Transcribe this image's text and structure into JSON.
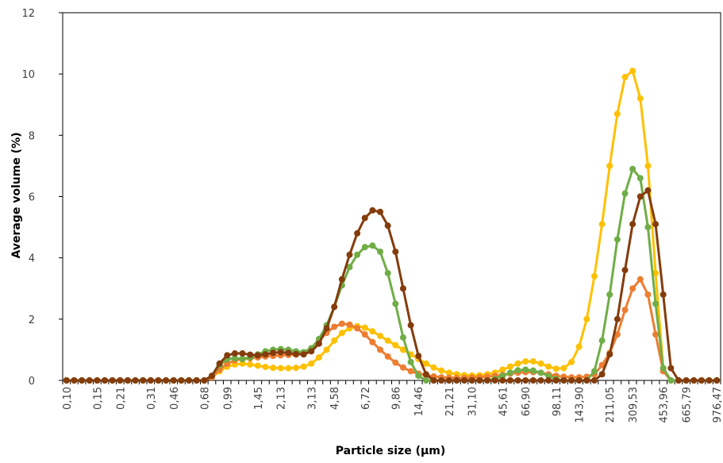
{
  "chart_data": {
    "type": "line",
    "title": "",
    "xlabel": "Particle size (µm)",
    "ylabel": "Average volume (%)",
    "ylim": [
      0,
      12
    ],
    "yticks": [
      "0",
      "2",
      "4",
      "6",
      "8",
      "10",
      "12"
    ],
    "grid": false,
    "legend": "none",
    "x_tick_labels": [
      "0,10",
      "0,15",
      "0,21",
      "0,31",
      "0,46",
      "0,68",
      "0,99",
      "1,45",
      "2,13",
      "3,13",
      "4,58",
      "6,72",
      "9,86",
      "14,46",
      "21,21",
      "31,10",
      "45,61",
      "66,90",
      "98,11",
      "143,90",
      "211,05",
      "309,53",
      "453,96",
      "665,79",
      "976,47"
    ],
    "n_points": 86,
    "series": [
      {
        "color": "#ffc000",
        "values": [
          0,
          0,
          0,
          0,
          0,
          0,
          0,
          0,
          0,
          0,
          0,
          0,
          0,
          0,
          0,
          0,
          0,
          0,
          0,
          0.1,
          0.3,
          0.45,
          0.52,
          0.55,
          0.52,
          0.48,
          0.44,
          0.41,
          0.4,
          0.4,
          0.41,
          0.45,
          0.55,
          0.75,
          1.0,
          1.3,
          1.55,
          1.7,
          1.77,
          1.72,
          1.6,
          1.45,
          1.3,
          1.15,
          1.0,
          0.85,
          0.7,
          0.55,
          0.42,
          0.32,
          0.25,
          0.2,
          0.17,
          0.16,
          0.17,
          0.2,
          0.25,
          0.35,
          0.45,
          0.55,
          0.62,
          0.62,
          0.55,
          0.45,
          0.38,
          0.4,
          0.6,
          1.1,
          2.0,
          3.4,
          5.1,
          7.0,
          8.7,
          9.9,
          10.1,
          9.2,
          7.0,
          3.5,
          0.4,
          0,
          0,
          0,
          0,
          0,
          0,
          0
        ]
      },
      {
        "color": "#ed7d31",
        "values": [
          0,
          0,
          0,
          0,
          0,
          0,
          0,
          0,
          0,
          0,
          0,
          0,
          0,
          0,
          0,
          0,
          0,
          0,
          0,
          0.1,
          0.35,
          0.55,
          0.65,
          0.7,
          0.72,
          0.75,
          0.78,
          0.8,
          0.82,
          0.83,
          0.84,
          0.9,
          1.05,
          1.3,
          1.55,
          1.75,
          1.85,
          1.82,
          1.7,
          1.5,
          1.25,
          1.0,
          0.78,
          0.58,
          0.42,
          0.3,
          0.22,
          0.17,
          0.13,
          0.1,
          0.09,
          0.08,
          0.08,
          0.09,
          0.1,
          0.12,
          0.15,
          0.18,
          0.22,
          0.25,
          0.27,
          0.27,
          0.25,
          0.2,
          0.15,
          0.12,
          0.1,
          0.1,
          0.12,
          0.2,
          0.5,
          0.9,
          1.5,
          2.3,
          3.0,
          3.3,
          2.8,
          1.5,
          0.3,
          0,
          0,
          0,
          0,
          0,
          0,
          0
        ]
      },
      {
        "color": "#70ad47",
        "values": [
          0,
          0,
          0,
          0,
          0,
          0,
          0,
          0,
          0,
          0,
          0,
          0,
          0,
          0,
          0,
          0,
          0,
          0,
          0,
          0.15,
          0.5,
          0.7,
          0.72,
          0.7,
          0.75,
          0.85,
          0.95,
          1.0,
          1.02,
          1.0,
          0.95,
          0.92,
          1.05,
          1.35,
          1.8,
          2.4,
          3.1,
          3.7,
          4.1,
          4.35,
          4.4,
          4.2,
          3.5,
          2.5,
          1.4,
          0.6,
          0.15,
          0,
          0,
          0,
          0,
          0,
          0,
          0,
          0,
          0,
          0.05,
          0.15,
          0.25,
          0.33,
          0.35,
          0.32,
          0.25,
          0.15,
          0.05,
          0,
          0,
          0,
          0,
          0.3,
          1.3,
          2.8,
          4.6,
          6.1,
          6.9,
          6.6,
          5.0,
          2.5,
          0.4,
          0,
          0,
          0,
          0,
          0,
          0,
          0
        ]
      },
      {
        "color": "#843c0c",
        "values": [
          0,
          0,
          0,
          0,
          0,
          0,
          0,
          0,
          0,
          0,
          0,
          0,
          0,
          0,
          0,
          0,
          0,
          0,
          0,
          0.15,
          0.55,
          0.82,
          0.88,
          0.88,
          0.84,
          0.82,
          0.85,
          0.9,
          0.92,
          0.9,
          0.86,
          0.85,
          0.95,
          1.2,
          1.7,
          2.4,
          3.3,
          4.1,
          4.8,
          5.3,
          5.55,
          5.5,
          5.05,
          4.2,
          3.0,
          1.8,
          0.8,
          0.2,
          0,
          0,
          0,
          0,
          0,
          0,
          0,
          0,
          0,
          0,
          0,
          0,
          0,
          0,
          0,
          0,
          0,
          0,
          0,
          0,
          0,
          0,
          0.2,
          0.85,
          2.0,
          3.6,
          5.1,
          6.0,
          6.2,
          5.1,
          2.8,
          0.4,
          0,
          0,
          0,
          0,
          0,
          0
        ]
      }
    ]
  }
}
